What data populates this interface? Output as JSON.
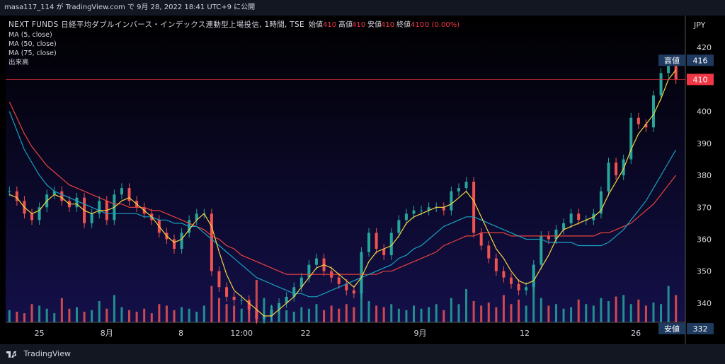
{
  "header": {
    "text": "masa117_114 が TradingView.com で 9月 28, 2022 18:41 UTC+9 に公開"
  },
  "footer": {
    "brand": "TradingView"
  },
  "chart_data": {
    "type": "candlestick",
    "title": "NEXT FUNDS 日経平均ダブルインバース・インデックス連動型上場投信, 1時間, TSE",
    "ohlc_label": {
      "open_label": "始値",
      "open": "410",
      "high_label": "高値",
      "high": "410",
      "low_label": "安値",
      "low": "410",
      "close_label": "終値",
      "close": "410",
      "change": "0 (0.00%)"
    },
    "indicators": [
      "MA (5, close)",
      "MA (50, close)",
      "MA (75, close)",
      "出来高"
    ],
    "currency": "JPY",
    "ylim": [
      334,
      430
    ],
    "y_ticks": [
      340,
      350,
      360,
      370,
      380,
      390,
      400,
      410,
      420
    ],
    "x_ticks": [
      "25",
      "8月",
      "8",
      "12:00",
      "22",
      "9月",
      "12",
      "26"
    ],
    "price_markers": [
      {
        "label": "高値",
        "value": 416,
        "color": "#1e3a5f"
      },
      {
        "label": "",
        "value": 410,
        "color": "#f23645"
      },
      {
        "label": "安値",
        "value": 332,
        "color": "#1e3a5f"
      }
    ],
    "close_series": [
      375,
      372,
      368,
      366,
      370,
      374,
      375,
      372,
      370,
      373,
      365,
      368,
      372,
      366,
      374,
      376,
      372,
      370,
      368,
      366,
      362,
      360,
      357,
      362,
      366,
      368,
      368,
      350,
      345,
      342,
      341,
      341,
      338,
      335,
      336,
      338,
      340,
      342,
      345,
      348,
      352,
      354,
      350,
      348,
      346,
      344,
      343,
      356,
      362,
      357,
      355,
      362,
      366,
      368,
      369,
      369,
      370,
      370,
      369,
      375,
      376,
      378,
      362,
      358,
      354,
      350,
      348,
      346,
      344,
      345,
      352,
      361,
      360,
      363,
      365,
      368,
      366,
      366,
      368,
      375,
      384,
      380,
      385,
      398,
      396,
      395,
      405,
      412,
      416,
      410
    ],
    "ma_fast": [
      374,
      373,
      370,
      368,
      369,
      372,
      374,
      373,
      371,
      371,
      369,
      368,
      369,
      369,
      370,
      372,
      373,
      371,
      369,
      367,
      364,
      361,
      359,
      360,
      363,
      366,
      368,
      364,
      356,
      349,
      344,
      342,
      340,
      338,
      336,
      336,
      338,
      340,
      342,
      345,
      348,
      351,
      352,
      351,
      349,
      347,
      345,
      348,
      353,
      356,
      357,
      358,
      361,
      365,
      367,
      368,
      369,
      370,
      370,
      371,
      373,
      375,
      372,
      367,
      362,
      357,
      354,
      350,
      347,
      346,
      347,
      351,
      355,
      360,
      363,
      364,
      365,
      366,
      367,
      369,
      374,
      378,
      382,
      388,
      393,
      396,
      399,
      404,
      410,
      413
    ],
    "ma_mid": [
      400,
      394,
      388,
      384,
      380,
      377,
      375,
      374,
      373,
      372,
      371,
      370,
      369,
      368,
      368,
      368,
      368,
      368,
      367,
      367,
      366,
      366,
      365,
      365,
      364,
      364,
      362,
      360,
      358,
      356,
      354,
      352,
      350,
      348,
      347,
      346,
      345,
      344,
      343,
      343,
      342,
      342,
      343,
      344,
      345,
      346,
      347,
      348,
      349,
      350,
      351,
      352,
      354,
      355,
      357,
      358,
      360,
      362,
      364,
      365,
      366,
      367,
      367,
      366,
      365,
      364,
      363,
      362,
      361,
      360,
      360,
      360,
      359,
      359,
      359,
      359,
      358,
      358,
      358,
      358,
      359,
      361,
      363,
      366,
      369,
      372,
      376,
      380,
      384,
      388
    ],
    "ma_slow": [
      403,
      398,
      393,
      389,
      386,
      383,
      381,
      379,
      377,
      376,
      375,
      374,
      373,
      372,
      371,
      371,
      370,
      370,
      370,
      369,
      369,
      368,
      367,
      366,
      365,
      364,
      363,
      361,
      360,
      358,
      357,
      355,
      354,
      353,
      352,
      351,
      350,
      349,
      349,
      349,
      349,
      349,
      349,
      349,
      349,
      349,
      349,
      349,
      349,
      349,
      350,
      350,
      351,
      352,
      353,
      354,
      355,
      356,
      358,
      359,
      360,
      361,
      361,
      362,
      362,
      362,
      362,
      361,
      361,
      361,
      361,
      361,
      361,
      361,
      361,
      361,
      361,
      361,
      361,
      362,
      362,
      363,
      364,
      365,
      367,
      369,
      371,
      374,
      377,
      380
    ],
    "volume": [
      40,
      35,
      30,
      60,
      55,
      45,
      30,
      80,
      45,
      50,
      35,
      40,
      70,
      45,
      90,
      50,
      40,
      35,
      45,
      30,
      60,
      55,
      40,
      50,
      45,
      35,
      55,
      120,
      80,
      60,
      55,
      45,
      60,
      140,
      80,
      55,
      45,
      40,
      35,
      50,
      45,
      60,
      40,
      55,
      45,
      60,
      50,
      130,
      70,
      55,
      50,
      60,
      45,
      40,
      55,
      45,
      50,
      60,
      40,
      80,
      60,
      110,
      70,
      55,
      65,
      50,
      90,
      60,
      75,
      55,
      130,
      80,
      55,
      60,
      45,
      50,
      75,
      60,
      55,
      80,
      70,
      85,
      90,
      60,
      75,
      55,
      65,
      60,
      120,
      90
    ]
  }
}
